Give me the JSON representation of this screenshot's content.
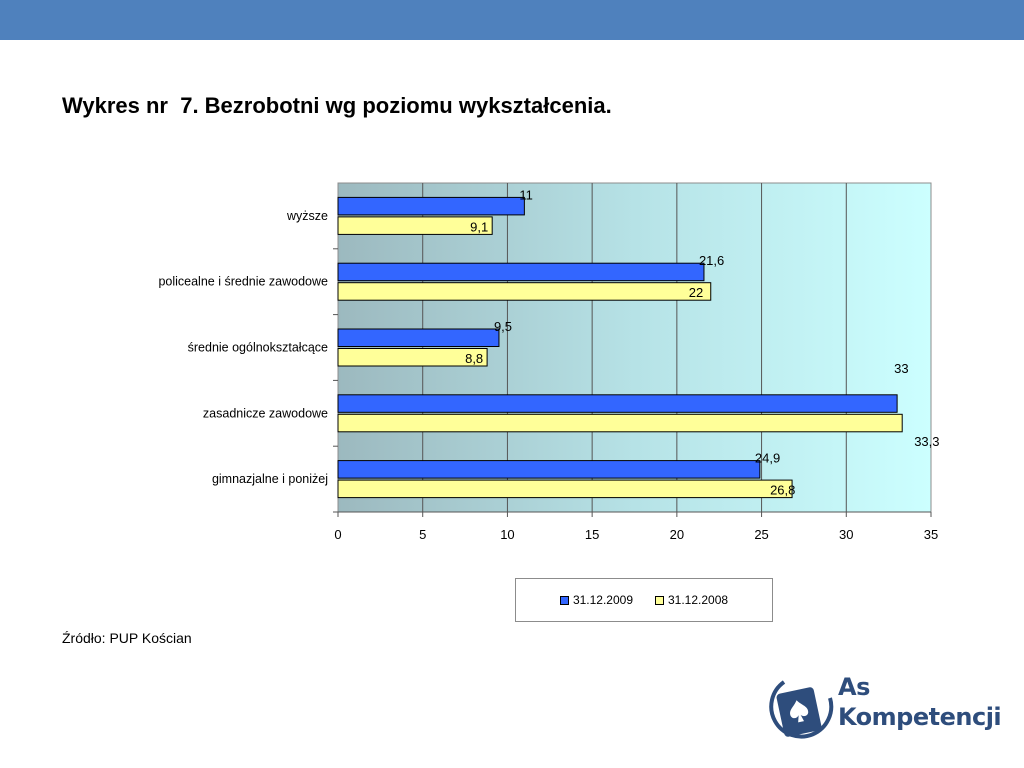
{
  "title": "Wykres nr  7. Bezrobotni wg poziomu wykształcenia.",
  "source": "Źródło: PUP Kościan",
  "logo": {
    "line1": "As",
    "line2": "Kompetencji",
    "icon": "spade-card-icon"
  },
  "colors": {
    "header": "#4f81bd",
    "series_2009": "#3366ff",
    "series_2008": "#ffff99"
  },
  "chart_data": {
    "type": "bar",
    "orientation": "horizontal",
    "categories": [
      "wyższe",
      "policealne i średnie zawodowe",
      "średnie ogólnokształcące",
      "zasadnicze zawodowe",
      "gimnazjalne i poniżej"
    ],
    "series": [
      {
        "name": "31.12.2009",
        "values": [
          11,
          21.6,
          9.5,
          33,
          24.9
        ],
        "labels": [
          "11",
          "21,6",
          "9,5",
          "33",
          "24,9"
        ],
        "color": "#3366ff"
      },
      {
        "name": "31.12.2008",
        "values": [
          9.1,
          22,
          8.8,
          33.3,
          26.8
        ],
        "labels": [
          "9,1",
          "22",
          "8,8",
          "33,3",
          "26,8"
        ],
        "color": "#ffff99"
      }
    ],
    "xlim": [
      0,
      35
    ],
    "ticks": [
      "0",
      "5",
      "10",
      "15",
      "20",
      "25",
      "30",
      "35"
    ],
    "grid": true,
    "legend": "bottom"
  }
}
